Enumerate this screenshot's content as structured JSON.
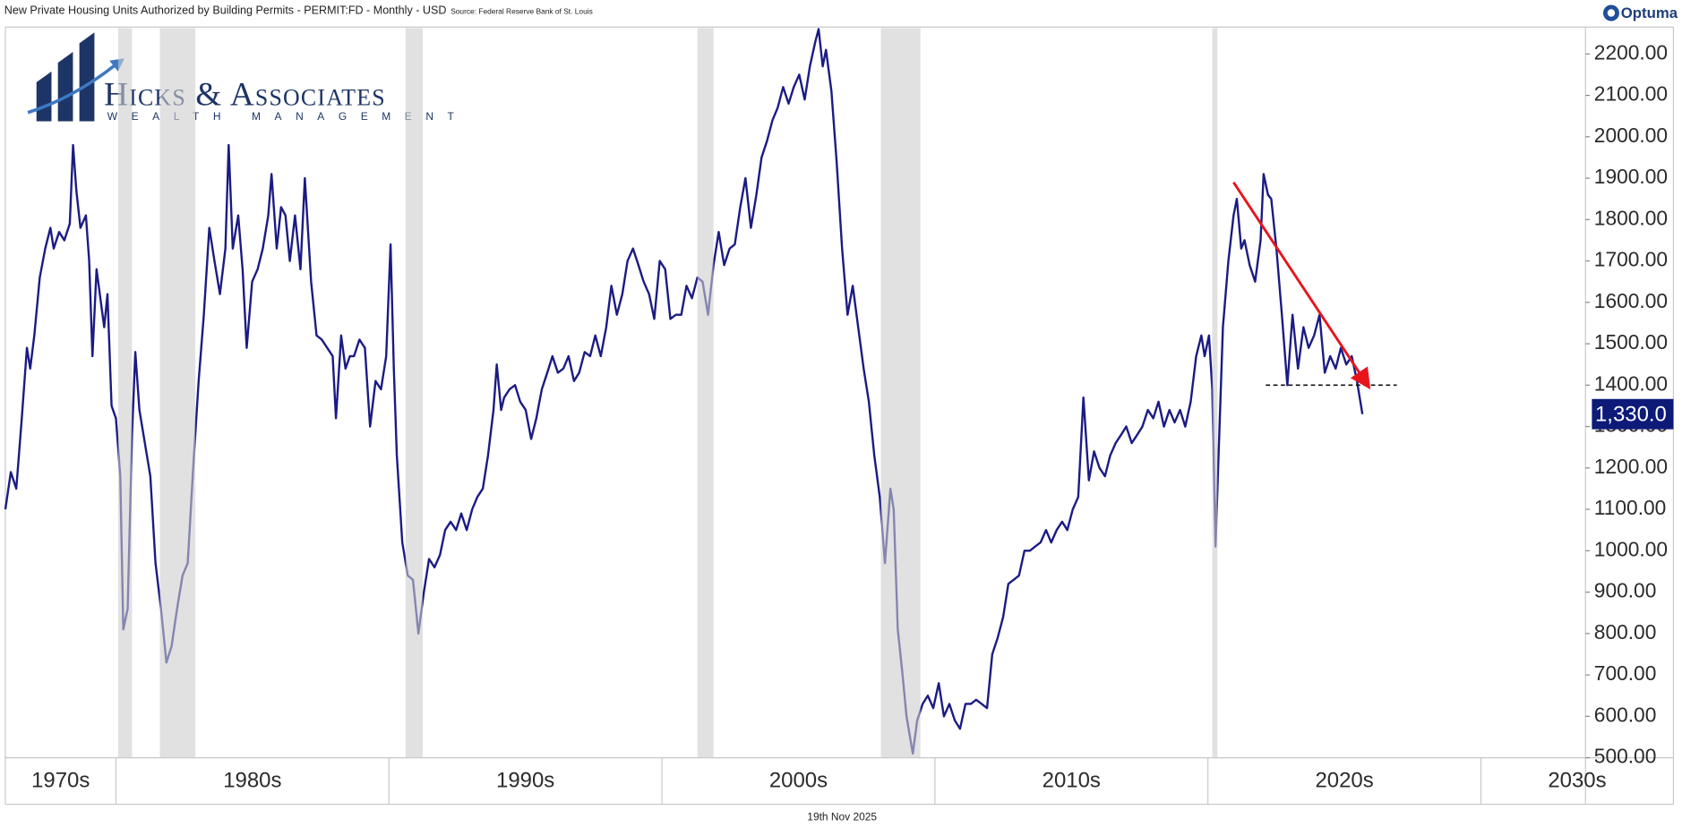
{
  "chart_data": {
    "type": "line",
    "title": "New Private Housing Units Authorized by Building Permits - PERMIT:FD - Monthly - USD",
    "source": "Source: Federal Reserve Bank of St. Louis",
    "brand": "Optuma",
    "date": "19th Nov 2025",
    "logo": {
      "name": "Hicks & Associates",
      "tagline": "WEALTH MANAGEMENT"
    },
    "x": [
      1975.95,
      1976.15,
      1976.35,
      1976.54,
      1976.74,
      1976.86,
      1977.01,
      1977.21,
      1977.41,
      1977.6,
      1977.72,
      1977.92,
      1978.11,
      1978.31,
      1978.43,
      1978.55,
      1978.7,
      1978.9,
      1979.02,
      1979.14,
      1979.29,
      1979.45,
      1979.57,
      1979.69,
      1979.84,
      1980.0,
      1980.16,
      1980.27,
      1980.43,
      1980.59,
      1980.71,
      1980.86,
      1981.06,
      1981.26,
      1981.45,
      1981.65,
      1981.85,
      1982.04,
      1982.24,
      1982.44,
      1982.63,
      1982.83,
      1983.03,
      1983.22,
      1983.42,
      1983.61,
      1983.81,
      1984.01,
      1984.13,
      1984.28,
      1984.48,
      1984.64,
      1984.79,
      1984.99,
      1985.19,
      1985.38,
      1985.58,
      1985.7,
      1985.89,
      1986.05,
      1986.21,
      1986.37,
      1986.56,
      1986.76,
      1986.92,
      1987.15,
      1987.35,
      1987.54,
      1987.74,
      1987.94,
      1988.06,
      1988.25,
      1988.41,
      1988.57,
      1988.72,
      1988.92,
      1989.12,
      1989.31,
      1989.51,
      1989.71,
      1989.9,
      1990.06,
      1990.18,
      1990.29,
      1990.49,
      1990.69,
      1990.88,
      1991.08,
      1991.28,
      1991.47,
      1991.67,
      1991.87,
      1992.06,
      1992.26,
      1992.46,
      1992.65,
      1992.85,
      1993.05,
      1993.24,
      1993.44,
      1993.63,
      1993.83,
      1993.95,
      1994.11,
      1994.22,
      1994.42,
      1994.62,
      1994.81,
      1995.01,
      1995.21,
      1995.4,
      1995.6,
      1995.8,
      1995.99,
      1996.19,
      1996.39,
      1996.58,
      1996.78,
      1996.97,
      1997.17,
      1997.37,
      1997.56,
      1997.76,
      1997.96,
      1998.15,
      1998.35,
      1998.55,
      1998.74,
      1998.94,
      1999.14,
      1999.33,
      1999.53,
      1999.72,
      1999.92,
      2000.12,
      2000.31,
      2000.51,
      2000.71,
      2000.9,
      2001.1,
      2001.3,
      2001.49,
      2001.69,
      2001.89,
      2002.08,
      2002.28,
      2002.48,
      2002.67,
      2002.87,
      2003.06,
      2003.26,
      2003.46,
      2003.65,
      2003.85,
      2004.05,
      2004.24,
      2004.44,
      2004.64,
      2004.83,
      2005.03,
      2005.23,
      2005.42,
      2005.62,
      2005.74,
      2005.89,
      2006.01,
      2006.21,
      2006.4,
      2006.6,
      2006.8,
      2006.99,
      2007.19,
      2007.39,
      2007.58,
      2007.78,
      2007.98,
      2008.17,
      2008.37,
      2008.49,
      2008.64,
      2008.8,
      2008.96,
      2009.19,
      2009.35,
      2009.55,
      2009.74,
      2009.94,
      2010.14,
      2010.33,
      2010.53,
      2010.73,
      2010.92,
      2011.12,
      2011.32,
      2011.51,
      2011.71,
      2011.91,
      2012.1,
      2012.3,
      2012.5,
      2012.69,
      2012.89,
      2013.08,
      2013.28,
      2013.48,
      2013.67,
      2013.87,
      2014.07,
      2014.26,
      2014.46,
      2014.66,
      2014.85,
      2015.05,
      2015.25,
      2015.44,
      2015.64,
      2015.83,
      2016.03,
      2016.23,
      2016.42,
      2016.62,
      2016.82,
      2017.01,
      2017.21,
      2017.41,
      2017.6,
      2017.8,
      2018.0,
      2018.19,
      2018.39,
      2018.59,
      2018.78,
      2018.98,
      2019.17,
      2019.37,
      2019.57,
      2019.76,
      2019.88,
      2020.04,
      2020.16,
      2020.28,
      2020.39,
      2020.55,
      2020.75,
      2020.94,
      2021.06,
      2021.22,
      2021.34,
      2021.53,
      2021.73,
      2021.93,
      2022.04,
      2022.2,
      2022.32,
      2022.51,
      2022.71,
      2022.91,
      2023.1,
      2023.3,
      2023.5,
      2023.69,
      2023.89,
      2024.09,
      2024.28,
      2024.48,
      2024.68,
      2024.87,
      2025.07,
      2025.27,
      2025.46,
      2025.66
    ],
    "series": [
      {
        "color": "#1b1b84",
        "values": [
          1100,
          1190,
          1150,
          1310,
          1490,
          1440,
          1520,
          1660,
          1730,
          1780,
          1730,
          1770,
          1750,
          1790,
          1980,
          1870,
          1780,
          1810,
          1700,
          1470,
          1680,
          1600,
          1540,
          1620,
          1350,
          1320,
          1180,
          810,
          860,
          1280,
          1480,
          1340,
          1260,
          1180,
          970,
          860,
          730,
          770,
          860,
          940,
          970,
          1200,
          1410,
          1570,
          1780,
          1700,
          1620,
          1730,
          1980,
          1730,
          1810,
          1680,
          1490,
          1650,
          1680,
          1730,
          1810,
          1910,
          1730,
          1830,
          1810,
          1700,
          1810,
          1680,
          1900,
          1650,
          1520,
          1510,
          1490,
          1470,
          1320,
          1520,
          1440,
          1470,
          1470,
          1510,
          1490,
          1300,
          1410,
          1390,
          1470,
          1740,
          1440,
          1230,
          1020,
          940,
          930,
          800,
          900,
          980,
          960,
          990,
          1050,
          1070,
          1050,
          1090,
          1050,
          1100,
          1130,
          1150,
          1230,
          1340,
          1450,
          1340,
          1370,
          1390,
          1400,
          1360,
          1340,
          1270,
          1320,
          1390,
          1430,
          1470,
          1430,
          1440,
          1470,
          1410,
          1430,
          1480,
          1470,
          1520,
          1470,
          1540,
          1640,
          1570,
          1620,
          1700,
          1730,
          1690,
          1650,
          1620,
          1560,
          1700,
          1680,
          1560,
          1570,
          1570,
          1640,
          1610,
          1660,
          1650,
          1570,
          1690,
          1770,
          1690,
          1730,
          1740,
          1830,
          1900,
          1780,
          1860,
          1950,
          1990,
          2040,
          2070,
          2120,
          2080,
          2120,
          2150,
          2090,
          2170,
          2230,
          2260,
          2170,
          2210,
          2110,
          1940,
          1730,
          1570,
          1640,
          1540,
          1440,
          1360,
          1230,
          1130,
          970,
          1150,
          1100,
          810,
          710,
          600,
          510,
          590,
          630,
          650,
          620,
          680,
          600,
          630,
          590,
          570,
          630,
          630,
          640,
          630,
          620,
          750,
          790,
          840,
          920,
          930,
          940,
          1000,
          1000,
          1010,
          1020,
          1050,
          1020,
          1050,
          1070,
          1050,
          1100,
          1130,
          1370,
          1170,
          1240,
          1200,
          1180,
          1230,
          1260,
          1280,
          1300,
          1260,
          1280,
          1300,
          1340,
          1320,
          1360,
          1300,
          1340,
          1310,
          1340,
          1300,
          1360,
          1470,
          1520,
          1470,
          1520,
          1390,
          1010,
          1230,
          1540,
          1700,
          1810,
          1850,
          1730,
          1750,
          1690,
          1650,
          1750,
          1910,
          1860,
          1850,
          1730,
          1570,
          1400,
          1570,
          1440,
          1540,
          1490,
          1520,
          1570,
          1430,
          1470,
          1440,
          1490,
          1450,
          1470,
          1410,
          1330
        ],
        "value_labels": [
          null,
          null,
          null,
          null,
          null,
          null,
          null,
          null,
          null,
          null,
          null,
          null,
          null,
          null,
          null,
          null,
          null,
          null,
          null,
          null,
          null,
          null,
          null,
          null,
          null,
          null,
          null,
          null,
          null,
          null,
          null,
          null,
          null,
          null,
          null,
          null,
          null,
          null,
          null,
          null,
          null,
          null,
          null,
          null,
          null,
          null,
          null,
          null,
          null,
          null,
          null,
          null,
          null,
          null,
          null,
          null,
          null,
          null,
          null,
          null,
          null,
          null,
          null,
          null,
          null,
          null,
          null,
          null,
          null,
          null,
          null,
          null,
          null,
          null,
          null,
          null,
          null,
          null,
          null,
          null,
          null,
          null,
          null,
          null,
          null,
          null,
          null,
          null,
          null,
          null,
          null,
          null,
          null,
          null,
          null,
          null,
          null,
          null,
          null,
          null,
          null,
          null,
          null,
          null,
          null,
          null,
          null,
          null,
          null,
          null,
          null,
          null,
          null,
          null,
          null,
          null,
          null,
          null,
          null,
          null,
          null,
          null,
          null,
          null,
          null,
          null,
          null,
          null,
          null,
          null,
          null,
          null,
          null,
          null,
          null,
          null,
          null,
          null,
          null,
          null,
          null,
          null,
          null,
          null,
          null,
          null,
          null,
          null,
          null,
          null,
          null,
          null,
          null,
          null,
          null,
          null,
          null,
          null,
          null,
          null,
          null,
          null,
          null,
          null,
          null,
          null,
          null,
          null,
          null,
          null,
          null,
          null,
          null,
          null,
          null,
          null,
          null,
          null,
          null,
          null,
          null,
          null,
          null,
          null,
          null,
          null,
          null,
          null,
          null,
          null,
          null,
          null,
          null,
          null,
          null,
          null,
          null,
          null,
          null,
          null,
          null,
          null,
          null,
          null,
          null,
          null,
          null,
          null,
          null,
          null,
          null,
          null,
          null,
          null,
          null,
          null,
          null,
          null,
          null,
          null,
          null,
          null,
          null,
          null,
          null,
          null,
          null,
          null,
          null,
          null,
          null,
          null,
          null,
          null,
          null,
          null,
          null,
          null,
          null,
          null,
          null,
          null,
          null,
          null,
          null,
          null,
          null,
          null,
          null,
          null,
          null,
          null,
          null,
          null,
          null,
          null,
          null,
          null,
          null,
          null,
          null,
          null,
          null,
          null,
          null,
          null,
          null,
          null,
          null,
          null,
          "1,330.0"
        ]
      }
    ],
    "recessions": [
      [
        1980.08,
        1980.59
      ],
      [
        1981.61,
        1982.91
      ],
      [
        1990.61,
        1991.24
      ],
      [
        2001.3,
        2001.89
      ],
      [
        2008.02,
        2009.47
      ],
      [
        2020.16,
        2020.35
      ]
    ],
    "trend_arrow": {
      "color": "#e8141c",
      "x": [
        2020.94,
        2025.85
      ],
      "y": [
        1890,
        1400
      ]
    },
    "support_line": {
      "color": "#111111",
      "x": [
        2022.12,
        2026.92
      ],
      "y": [
        1400,
        1400
      ]
    },
    "xlim": [
      1975.95,
      2033.83
    ],
    "xticks": [
      {
        "value": 1970,
        "label": "1970s"
      },
      {
        "value": 1980,
        "label": "1980s"
      },
      {
        "value": 1990,
        "label": "1990s"
      },
      {
        "value": 2000,
        "label": "2000s"
      },
      {
        "value": 2010,
        "label": "2010s"
      },
      {
        "value": 2020,
        "label": "2020s"
      },
      {
        "value": 2030,
        "label": "2030s"
      }
    ],
    "ylim": [
      500,
      2265
    ],
    "yticks": [
      {
        "value": 500,
        "label": "500.00"
      },
      {
        "value": 600,
        "label": "600.00"
      },
      {
        "value": 700,
        "label": "700.00"
      },
      {
        "value": 800,
        "label": "800.00"
      },
      {
        "value": 900,
        "label": "900.00"
      },
      {
        "value": 1000,
        "label": "1000.00"
      },
      {
        "value": 1100,
        "label": "1100.00"
      },
      {
        "value": 1200,
        "label": "1200.00"
      },
      {
        "value": 1300,
        "label": "1300.00"
      },
      {
        "value": 1400,
        "label": "1400.00"
      },
      {
        "value": 1500,
        "label": "1500.00"
      },
      {
        "value": 1600,
        "label": "1600.00"
      },
      {
        "value": 1700,
        "label": "1700.00"
      },
      {
        "value": 1800,
        "label": "1800.00"
      },
      {
        "value": 1900,
        "label": "1900.00"
      },
      {
        "value": 2000,
        "label": "2000.00"
      },
      {
        "value": 2100,
        "label": "2100.00"
      },
      {
        "value": 2200,
        "label": "2200.00"
      }
    ],
    "grid": false
  }
}
